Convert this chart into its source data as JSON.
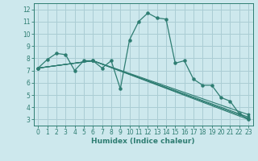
{
  "xlabel": "Humidex (Indice chaleur)",
  "background_color": "#cde8ed",
  "grid_color": "#aacdd4",
  "line_color": "#2e7d72",
  "xlim": [
    -0.5,
    23.5
  ],
  "ylim": [
    2.5,
    12.5
  ],
  "xticks": [
    0,
    1,
    2,
    3,
    4,
    5,
    6,
    7,
    8,
    9,
    10,
    11,
    12,
    13,
    14,
    15,
    16,
    17,
    18,
    19,
    20,
    21,
    22,
    23
  ],
  "yticks": [
    3,
    4,
    5,
    6,
    7,
    8,
    9,
    10,
    11,
    12
  ],
  "main_series": [
    [
      0,
      7.2
    ],
    [
      1,
      7.9
    ],
    [
      2,
      8.4
    ],
    [
      3,
      8.3
    ],
    [
      4,
      7.0
    ],
    [
      5,
      7.8
    ],
    [
      6,
      7.8
    ],
    [
      7,
      7.2
    ],
    [
      8,
      7.8
    ],
    [
      9,
      5.5
    ],
    [
      10,
      9.5
    ],
    [
      11,
      11.0
    ],
    [
      12,
      11.7
    ],
    [
      13,
      11.3
    ],
    [
      14,
      11.2
    ],
    [
      15,
      7.6
    ],
    [
      16,
      7.8
    ],
    [
      17,
      6.3
    ],
    [
      18,
      5.8
    ],
    [
      19,
      5.8
    ],
    [
      20,
      4.8
    ],
    [
      21,
      4.5
    ],
    [
      22,
      3.5
    ],
    [
      23,
      3.0
    ]
  ],
  "extra_lines": [
    [
      [
        0,
        7.2
      ],
      [
        6,
        7.8
      ],
      [
        23,
        3.0
      ]
    ],
    [
      [
        0,
        7.2
      ],
      [
        6,
        7.8
      ],
      [
        23,
        3.1
      ]
    ],
    [
      [
        0,
        7.2
      ],
      [
        6,
        7.8
      ],
      [
        23,
        3.2
      ]
    ],
    [
      [
        0,
        7.2
      ],
      [
        6,
        7.8
      ],
      [
        23,
        3.4
      ]
    ]
  ]
}
